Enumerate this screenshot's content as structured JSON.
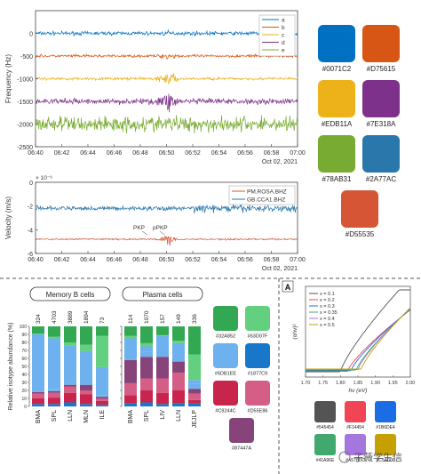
{
  "top_charts": [
    {
      "type": "line",
      "ylabel": "Frequency (Hz)",
      "yticks": [
        0,
        -500,
        -1000,
        -1500,
        -2000,
        -2500
      ],
      "ylim": [
        -2500,
        500
      ],
      "xticks": [
        "06:40",
        "06:42",
        "06:44",
        "06:46",
        "06:48",
        "06:50",
        "06:52",
        "06:54",
        "06:56",
        "06:58",
        "07:00"
      ],
      "date_label": "Oct 02, 2021",
      "series": [
        {
          "name": "a",
          "color": "#0071C2",
          "offset": 0,
          "amp": 60,
          "burst": 90
        },
        {
          "name": "b",
          "color": "#D75615",
          "offset": -500,
          "amp": 45,
          "burst": 110
        },
        {
          "name": "c",
          "color": "#EDB11A",
          "offset": -1000,
          "amp": 45,
          "burst": 200
        },
        {
          "name": "d",
          "color": "#7E318A",
          "offset": -1500,
          "amp": 90,
          "burst": 350
        },
        {
          "name": "e",
          "color": "#78AB31",
          "offset": -2000,
          "amp": 250,
          "burst": 450
        }
      ]
    },
    {
      "type": "line",
      "ylabel": "Velocity (m/s)",
      "exponent": "× 10⁻⁶",
      "yticks": [
        0,
        -2,
        -4,
        -6
      ],
      "ylim": [
        -6,
        0
      ],
      "xticks": [
        "06:40",
        "06:42",
        "06:44",
        "06:46",
        "06:48",
        "06:50",
        "06:52",
        "06:54",
        "06:56",
        "06:58",
        "07:00"
      ],
      "date_label": "Oct 02, 2021",
      "series": [
        {
          "name": "PM.ROSA.BHZ",
          "color": "#D55535",
          "offset": -4.8
        },
        {
          "name": "GB.CCA1.BHZ",
          "color": "#2A77AC",
          "offset": -2.2
        }
      ],
      "annotations": [
        "PKP",
        "pPKP"
      ]
    }
  ],
  "top_palette": [
    {
      "hex": "#0071C2",
      "label": "#0071C2"
    },
    {
      "hex": "#D75615",
      "label": "#D75615"
    },
    {
      "hex": "#EDB11A",
      "label": "#EDB11A"
    },
    {
      "hex": "#7E318A",
      "label": "#7E318A"
    },
    {
      "hex": "#78AB31",
      "label": "#78AB31"
    },
    {
      "hex": "#2A77AC",
      "label": "#2A77AC"
    },
    {
      "hex": "#D55535",
      "label": "#D55535"
    }
  ],
  "bar_chart": {
    "type": "bar",
    "ylabel": "Relative isotype abundance (%)",
    "yticks": [
      0,
      10,
      20,
      30,
      40,
      50,
      60,
      70,
      80,
      90,
      100
    ],
    "groups": [
      {
        "title": "Memory B cells",
        "categories": [
          "BMA",
          "SPL",
          "LLN",
          "MLN",
          "ILE"
        ],
        "counts": [
          "324",
          "4703",
          "3889",
          "1894",
          "73"
        ],
        "stacks": [
          [
            3,
            7,
            6,
            2,
            2,
            70,
            1,
            9
          ],
          [
            3,
            8,
            6,
            2,
            3,
            63,
            2,
            13
          ],
          [
            5,
            12,
            8,
            2,
            4,
            45,
            4,
            20
          ],
          [
            3,
            12,
            5,
            7,
            3,
            39,
            8,
            23
          ],
          [
            2,
            5,
            3,
            2,
            2,
            35,
            39,
            12
          ]
        ]
      },
      {
        "title": "Plasma cells",
        "categories": [
          "BMA",
          "SPL",
          "LIV",
          "LLN",
          "JEJLP"
        ],
        "counts": [
          "114",
          "1070",
          "157",
          "149",
          "336"
        ],
        "stacks": [
          [
            4,
            10,
            15,
            29,
            22,
            5,
            3,
            12
          ],
          [
            5,
            15,
            15,
            27,
            6,
            7,
            4,
            21
          ],
          [
            3,
            14,
            18,
            27,
            23,
            3,
            1,
            11
          ],
          [
            4,
            16,
            22,
            14,
            14,
            9,
            3,
            18
          ],
          [
            4,
            4,
            8,
            6,
            6,
            5,
            32,
            35
          ]
        ]
      }
    ],
    "stack_colors": [
      "#1877C9",
      "#C9244C",
      "#D55E86",
      "#87447A",
      "#6DB1EE",
      "#6DB1EE",
      "#63D07F",
      "#32A852"
    ]
  },
  "bar_palette": [
    {
      "hex": "#32A852",
      "label": "#32A852"
    },
    {
      "hex": "#63D07F",
      "label": "#63D07F"
    },
    {
      "hex": "#6DB1EE",
      "label": "#6DB1EE"
    },
    {
      "hex": "#1877C9",
      "label": "#1877C9"
    },
    {
      "hex": "#C9244C",
      "label": "#C9244C"
    },
    {
      "hex": "#D55E86",
      "label": "#D55E86"
    },
    {
      "hex": "#87447A",
      "label": "#87447A"
    }
  ],
  "spectrum_chart": {
    "type": "line",
    "panel_label": "A",
    "ylabel": "(αhν)²",
    "xlabel": "hν (eV)",
    "xticks": [
      "1.70",
      "1.75",
      "1.80",
      "1.85",
      "1.90",
      "1.95",
      "2.00"
    ],
    "xlim": [
      1.7,
      2.0
    ],
    "series": [
      {
        "name": "x = 0.1",
        "color": "#545454",
        "onset": 1.8
      },
      {
        "name": "x = 0.2",
        "color": "#F14454",
        "onset": 1.82
      },
      {
        "name": "x = 0.3",
        "color": "#1B6DE4",
        "onset": 1.83
      },
      {
        "name": "x = 0.35",
        "color": "#41A96E",
        "onset": 1.845
      },
      {
        "name": "x = 0.4",
        "color": "#A576DD",
        "onset": 1.85
      },
      {
        "name": "x = 0.5",
        "color": "#C5A000",
        "onset": 1.86
      }
    ]
  },
  "spectrum_palette": [
    {
      "hex": "#545454",
      "label": "#545454"
    },
    {
      "hex": "#F14454",
      "label": "#F14454"
    },
    {
      "hex": "#1B6DE4",
      "label": "#1B6DE4"
    },
    {
      "hex": "#41A96E",
      "label": "#41A96E"
    },
    {
      "hex": "#A576DD",
      "label": "#A576DD"
    },
    {
      "hex": "#C5A000",
      "label": "#C5A000"
    }
  ],
  "watermark": "子薇学生信"
}
